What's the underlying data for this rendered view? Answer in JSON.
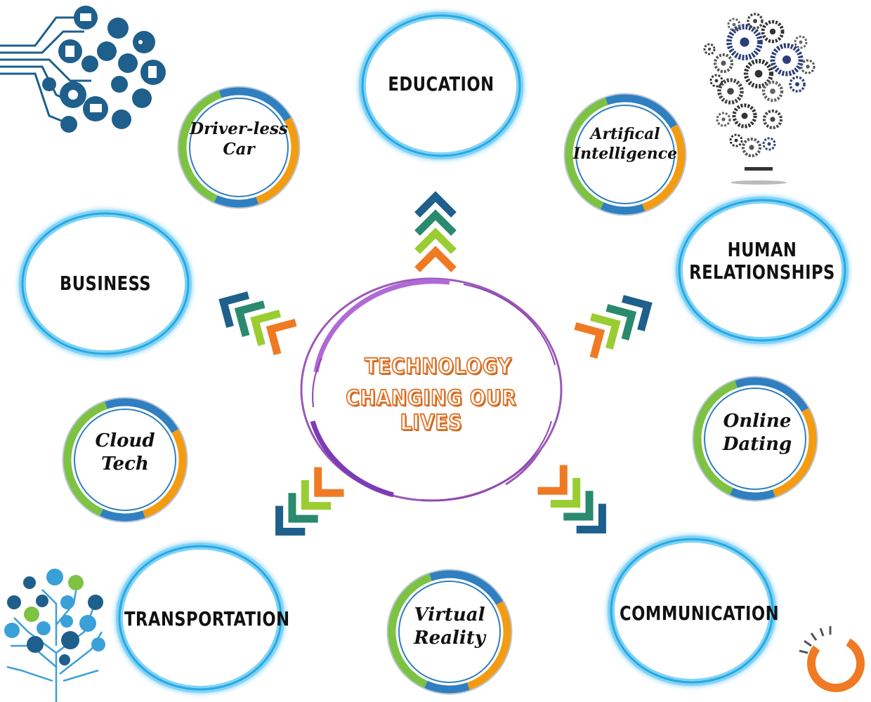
{
  "center": {
    "line1": "TECHNOLOGY",
    "line2": "CHANGING OUR LIVES"
  },
  "topics": {
    "education": "EDUCATION",
    "business": "BUSINESS",
    "human_line1": "HUMAN",
    "human_line2": "RELATIONSHIPS",
    "transportation": "TRANSPORTATION",
    "communication": "COMMUNICATION"
  },
  "subtopics": {
    "driverless_line1": "Driver-less",
    "driverless_line2": "Car",
    "ai_line1": "Artifical",
    "ai_line2": "Intelligence",
    "cloud_line1": "Cloud",
    "cloud_line2": "Tech",
    "dating_line1": "Online",
    "dating_line2": "Dating",
    "vr_line1": "Virtual",
    "vr_line2": "Reality"
  },
  "colors": {
    "ring_glow": "#4fc3f7",
    "center_ring": "#8e44ad",
    "arrow_dark": "#1e5f8c",
    "arrow_teal": "#2a8a6e",
    "arrow_lime": "#9acd32",
    "arrow_orange": "#f07a24",
    "ring_green": "#7dc242",
    "ring_blue": "#2f7fc1",
    "ring_orange": "#f39c12",
    "title_orange": "#e0762b"
  },
  "icons": [
    "circuit-tech-icon",
    "gear-lightbulb-icon",
    "tech-tree-icon",
    "orange-ring-logo-icon"
  ]
}
